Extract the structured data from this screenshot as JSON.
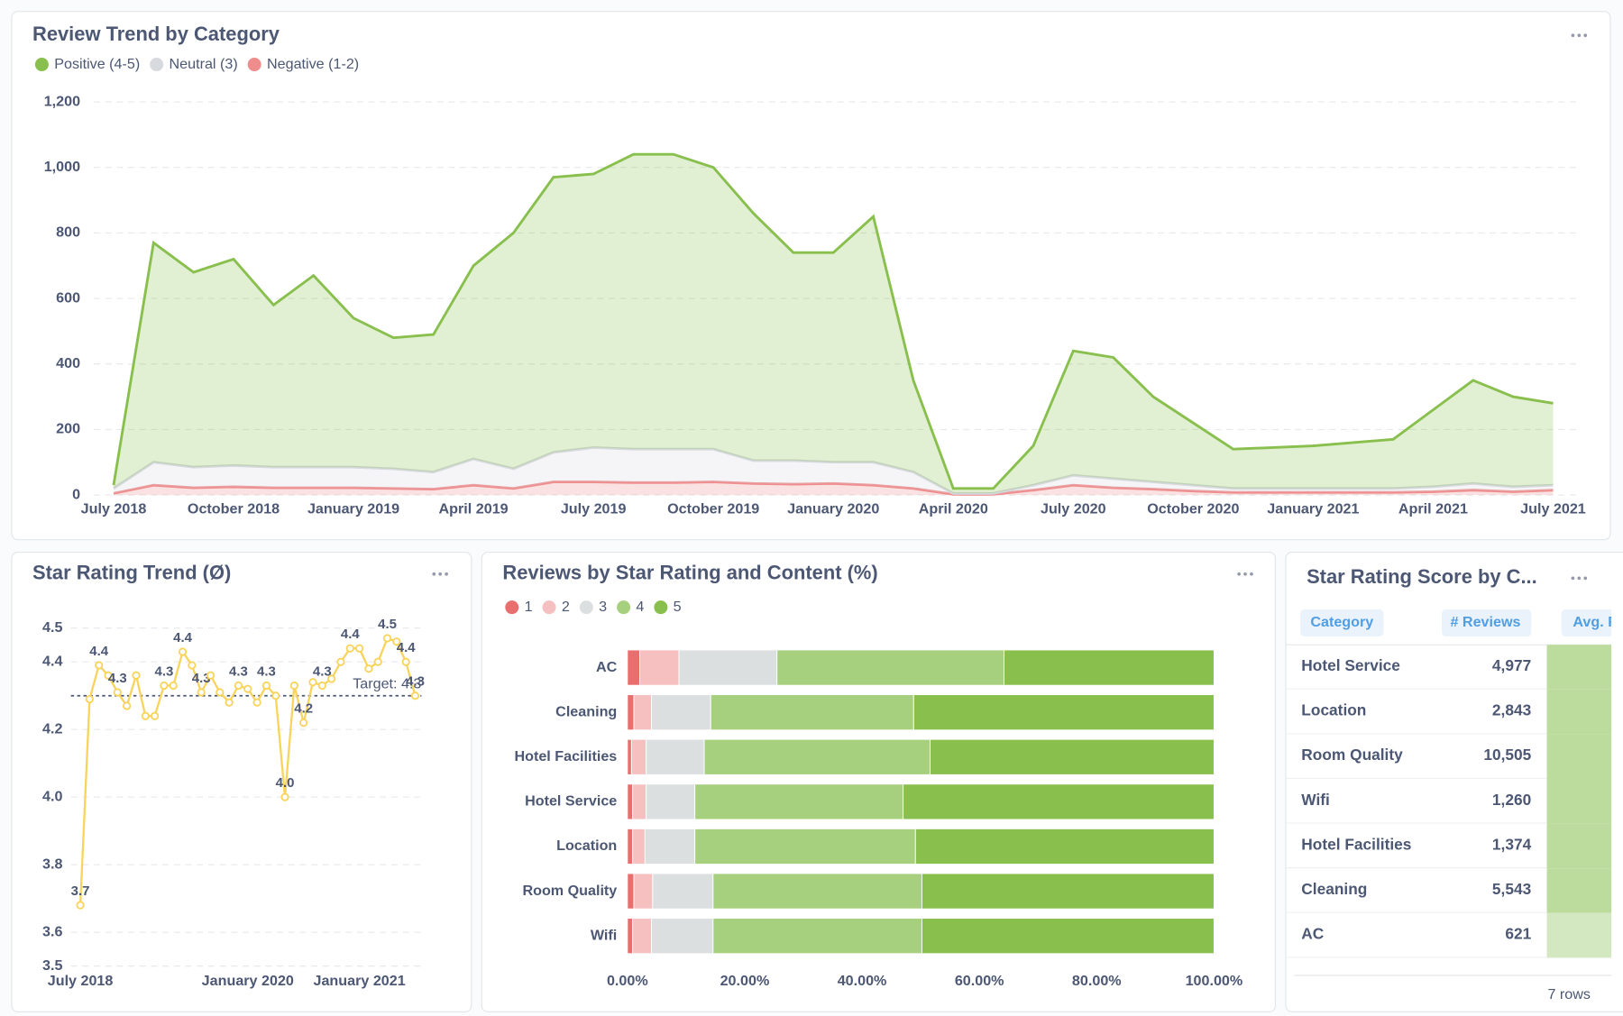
{
  "chart_data": [
    {
      "type": "area",
      "title": "Review Trend by Category",
      "categories": [
        "July 2018",
        null,
        null,
        "October 2018",
        null,
        null,
        "January 2019",
        null,
        null,
        "April 2019",
        null,
        null,
        "July 2019",
        null,
        null,
        "October 2019",
        null,
        null,
        "January 2020",
        null,
        null,
        "April 2020",
        null,
        null,
        "July 2020",
        null,
        null,
        "October 2020",
        null,
        null,
        "January 2021",
        null,
        null,
        "April 2021",
        null,
        null,
        "July 2021"
      ],
      "stacked": true,
      "series": [
        {
          "name": "Positive (4-5)",
          "color": "#88bf4d",
          "values": [
            10,
            670,
            595,
            630,
            495,
            585,
            455,
            400,
            420,
            590,
            720,
            840,
            835,
            900,
            900,
            860,
            755,
            635,
            640,
            750,
            280,
            15,
            15,
            120,
            380,
            370,
            260,
            190,
            120,
            125,
            130,
            140,
            150,
            235,
            315,
            275,
            250
          ]
        },
        {
          "name": "Neutral (3)",
          "color": "#d6d9de",
          "values": [
            15,
            70,
            63,
            65,
            63,
            63,
            63,
            60,
            52,
            80,
            60,
            90,
            105,
            102,
            102,
            100,
            70,
            72,
            65,
            70,
            50,
            3,
            3,
            15,
            30,
            28,
            22,
            18,
            12,
            12,
            12,
            12,
            12,
            15,
            20,
            15,
            15
          ]
        },
        {
          "name": "Negative (1-2)",
          "color": "#ef8c8c",
          "values": [
            5,
            30,
            22,
            25,
            22,
            22,
            22,
            20,
            18,
            30,
            20,
            40,
            40,
            38,
            38,
            40,
            35,
            33,
            35,
            30,
            20,
            2,
            2,
            15,
            30,
            22,
            18,
            12,
            8,
            8,
            8,
            8,
            8,
            10,
            15,
            10,
            15
          ]
        }
      ],
      "ylim": [
        0,
        1200
      ],
      "yticks": [
        0,
        200,
        400,
        600,
        800,
        {
          "value": 1000,
          "label": "1,000"
        },
        {
          "value": 1200,
          "label": "1,200"
        }
      ],
      "grid": true
    },
    {
      "type": "line",
      "title": "Star Rating Trend (Ø)",
      "color": "#f9d45c",
      "categories": [
        "July 2018",
        null,
        null,
        null,
        null,
        null,
        null,
        null,
        null,
        null,
        null,
        null,
        null,
        null,
        null,
        null,
        null,
        null,
        "January 2020",
        null,
        null,
        null,
        null,
        null,
        null,
        null,
        null,
        null,
        null,
        null,
        "January 2021",
        null,
        null,
        null,
        null,
        null,
        null
      ],
      "values": [
        3.68,
        4.29,
        4.39,
        4.36,
        4.31,
        4.27,
        4.36,
        4.24,
        4.24,
        4.33,
        4.33,
        4.43,
        4.39,
        4.31,
        4.36,
        4.31,
        4.28,
        4.33,
        4.32,
        4.28,
        4.33,
        4.3,
        4.0,
        4.33,
        4.22,
        4.34,
        4.33,
        4.35,
        4.4,
        4.44,
        4.44,
        4.38,
        4.4,
        4.47,
        4.46,
        4.4,
        4.3
      ],
      "value_labels": [
        "3.7",
        null,
        "4.4",
        null,
        "4.3",
        null,
        null,
        null,
        null,
        "4.3",
        null,
        "4.4",
        null,
        "4.3",
        null,
        null,
        null,
        "4.3",
        null,
        null,
        "4.3",
        null,
        "4.0",
        null,
        "4.2",
        null,
        "4.3",
        null,
        null,
        "4.4",
        null,
        null,
        null,
        "4.5",
        null,
        "4.4",
        "4.3"
      ],
      "target": {
        "value": 4.3,
        "label": "Target: 4.3"
      },
      "ylim": [
        3.5,
        4.5
      ],
      "yticks": [
        3.5,
        3.6,
        3.8,
        {
          "value": 4.0,
          "label": "4.0"
        },
        4.2,
        4.4,
        4.5
      ],
      "grid": true
    },
    {
      "type": "bar",
      "title": "Reviews by Star Rating and Content (%)",
      "orientation": "horizontal",
      "stacked": true,
      "categories": [
        "AC",
        "Cleaning",
        "Hotel Facilities",
        "Hotel Service",
        "Location",
        "Room Quality",
        "Wifi"
      ],
      "series": [
        {
          "name": "1",
          "color": "#e96f6f",
          "values": [
            2.1,
            1.1,
            0.7,
            0.9,
            0.9,
            1.1,
            0.9
          ]
        },
        {
          "name": "2",
          "color": "#f6c0c0",
          "values": [
            6.7,
            3.0,
            2.5,
            2.3,
            2.1,
            3.2,
            3.2
          ]
        },
        {
          "name": "3",
          "color": "#dcdfe0",
          "values": [
            16.7,
            10.1,
            9.9,
            8.3,
            8.5,
            10.3,
            10.5
          ]
        },
        {
          "name": "4",
          "color": "#a7d07e",
          "values": [
            38.7,
            34.6,
            38.5,
            35.5,
            37.6,
            35.6,
            35.6
          ]
        },
        {
          "name": "5",
          "color": "#88bf4d",
          "values": [
            35.8,
            51.2,
            48.4,
            53.0,
            50.9,
            49.8,
            49.8
          ]
        }
      ],
      "xlim": [
        0,
        100
      ],
      "xticks": [
        {
          "value": 0,
          "label": "0.00%"
        },
        {
          "value": 20,
          "label": "20.00%"
        },
        {
          "value": 40,
          "label": "40.00%"
        },
        {
          "value": 60,
          "label": "60.00%"
        },
        {
          "value": 80,
          "label": "80.00%"
        },
        {
          "value": 100,
          "label": "100.00%"
        }
      ]
    }
  ],
  "table": {
    "title": "Star Rating Score by C...",
    "columns": [
      "Category",
      "# Reviews",
      "Avg. F"
    ],
    "rows": [
      [
        "Hotel Service",
        "4,977"
      ],
      [
        "Location",
        "2,843"
      ],
      [
        "Room Quality",
        "10,505"
      ],
      [
        "Wifi",
        "1,260"
      ],
      [
        "Hotel Facilities",
        "1,374"
      ],
      [
        "Cleaning",
        "5,543"
      ],
      [
        "AC",
        "621"
      ]
    ],
    "footer": "7 rows"
  }
}
